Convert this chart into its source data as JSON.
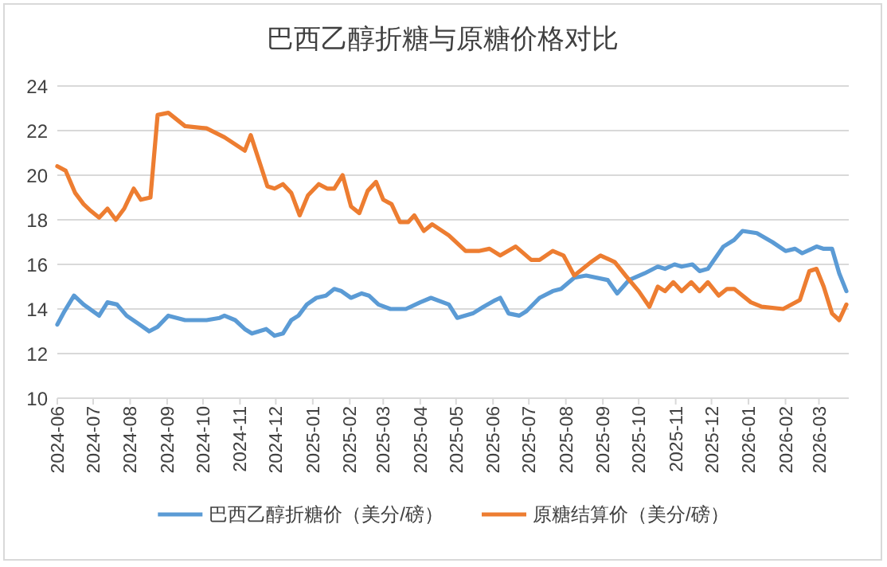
{
  "chart_data": {
    "type": "line",
    "title": "巴西乙醇折糖与原糖价格对比",
    "legend": "bottom",
    "grid": "y",
    "marker": "none",
    "line_style": "solid",
    "xlim": [
      "2024-06-01",
      "2026-03-26"
    ],
    "xticks": [
      "2024-06",
      "2024-07",
      "2024-08",
      "2024-09",
      "2024-10",
      "2024-11",
      "2024-12",
      "2025-01",
      "2025-02",
      "2025-03",
      "2025-04",
      "2025-05",
      "2025-06",
      "2025-07",
      "2025-08",
      "2025-09",
      "2025-10",
      "2025-11",
      "2025-12",
      "2026-01",
      "2026-02",
      "2026-03"
    ],
    "ylim": [
      10,
      24
    ],
    "yticks": [
      10,
      12,
      14,
      16,
      18,
      20,
      22,
      24
    ],
    "series": [
      {
        "name": "巴西乙醇折糖价（美分/磅）",
        "color": "#5b9bd5",
        "x": [
          "2024-06-01",
          "2024-06-07",
          "2024-06-15",
          "2024-06-23",
          "2024-07-06",
          "2024-07-13",
          "2024-07-21",
          "2024-07-29",
          "2024-08-09",
          "2024-08-17",
          "2024-08-24",
          "2024-09-02",
          "2024-09-16",
          "2024-10-04",
          "2024-10-15",
          "2024-10-19",
          "2024-10-28",
          "2024-11-05",
          "2024-11-11",
          "2024-11-23",
          "2024-11-30",
          "2024-12-07",
          "2024-12-14",
          "2024-12-20",
          "2024-12-27",
          "2025-01-04",
          "2025-01-12",
          "2025-01-19",
          "2025-01-25",
          "2025-02-02",
          "2025-02-11",
          "2025-02-17",
          "2025-02-25",
          "2025-03-07",
          "2025-03-20",
          "2025-04-01",
          "2025-04-10",
          "2025-04-25",
          "2025-05-02",
          "2025-05-15",
          "2025-05-24",
          "2025-06-03",
          "2025-06-07",
          "2025-06-14",
          "2025-06-23",
          "2025-06-29",
          "2025-07-10",
          "2025-07-21",
          "2025-07-28",
          "2025-08-08",
          "2025-08-18",
          "2025-09-05",
          "2025-09-13",
          "2025-09-23",
          "2025-10-06",
          "2025-10-17",
          "2025-10-23",
          "2025-10-31",
          "2025-11-06",
          "2025-11-15",
          "2025-11-21",
          "2025-11-28",
          "2025-12-11",
          "2025-12-20",
          "2025-12-27",
          "2026-01-08",
          "2026-01-21",
          "2026-02-01",
          "2026-02-09",
          "2026-02-15",
          "2026-02-27",
          "2026-03-05",
          "2026-03-12",
          "2026-03-18",
          "2026-03-24"
        ],
        "values": [
          13.3,
          13.9,
          14.6,
          14.2,
          13.7,
          14.3,
          14.2,
          13.7,
          13.3,
          13.0,
          13.2,
          13.7,
          13.5,
          13.5,
          13.6,
          13.7,
          13.5,
          13.1,
          12.9,
          13.1,
          12.8,
          12.9,
          13.5,
          13.7,
          14.2,
          14.5,
          14.6,
          14.9,
          14.8,
          14.5,
          14.7,
          14.6,
          14.2,
          14.0,
          14.0,
          14.3,
          14.5,
          14.2,
          13.6,
          13.8,
          14.1,
          14.4,
          14.5,
          13.8,
          13.7,
          13.9,
          14.5,
          14.8,
          14.9,
          15.4,
          15.5,
          15.3,
          14.7,
          15.3,
          15.6,
          15.9,
          15.8,
          16.0,
          15.9,
          16.0,
          15.7,
          15.8,
          16.8,
          17.1,
          17.5,
          17.4,
          17.0,
          16.6,
          16.7,
          16.5,
          16.8,
          16.7,
          16.7,
          15.6,
          14.8
        ]
      },
      {
        "name": "原糖结算价（美分/磅）",
        "color": "#ed7d31",
        "x": [
          "2024-06-01",
          "2024-06-08",
          "2024-06-16",
          "2024-06-23",
          "2024-06-29",
          "2024-07-06",
          "2024-07-13",
          "2024-07-20",
          "2024-07-27",
          "2024-08-04",
          "2024-08-10",
          "2024-08-18",
          "2024-08-24",
          "2024-09-02",
          "2024-09-16",
          "2024-10-04",
          "2024-10-19",
          "2024-11-05",
          "2024-11-10",
          "2024-11-24",
          "2024-11-30",
          "2024-12-07",
          "2024-12-14",
          "2024-12-21",
          "2024-12-28",
          "2025-01-06",
          "2025-01-13",
          "2025-01-19",
          "2025-01-26",
          "2025-02-02",
          "2025-02-09",
          "2025-02-16",
          "2025-02-23",
          "2025-03-01",
          "2025-03-08",
          "2025-03-15",
          "2025-03-22",
          "2025-03-27",
          "2025-04-04",
          "2025-04-11",
          "2025-04-25",
          "2025-05-09",
          "2025-05-20",
          "2025-05-29",
          "2025-06-07",
          "2025-06-20",
          "2025-07-03",
          "2025-07-10",
          "2025-07-21",
          "2025-07-30",
          "2025-08-08",
          "2025-08-22",
          "2025-08-30",
          "2025-09-11",
          "2025-09-20",
          "2025-10-01",
          "2025-10-10",
          "2025-10-17",
          "2025-10-23",
          "2025-10-30",
          "2025-11-06",
          "2025-11-14",
          "2025-11-21",
          "2025-11-28",
          "2025-12-07",
          "2025-12-14",
          "2025-12-20",
          "2026-01-03",
          "2026-01-12",
          "2026-01-30",
          "2026-02-13",
          "2026-02-21",
          "2026-02-27",
          "2026-03-05",
          "2026-03-12",
          "2026-03-18",
          "2026-03-24"
        ],
        "values": [
          20.4,
          20.2,
          19.2,
          18.7,
          18.4,
          18.1,
          18.5,
          18.0,
          18.5,
          19.4,
          18.9,
          19.0,
          22.7,
          22.8,
          22.2,
          22.1,
          21.7,
          21.1,
          21.8,
          19.5,
          19.4,
          19.6,
          19.2,
          18.2,
          19.1,
          19.6,
          19.4,
          19.4,
          20.0,
          18.6,
          18.3,
          19.3,
          19.7,
          18.9,
          18.7,
          17.9,
          17.9,
          18.2,
          17.5,
          17.8,
          17.3,
          16.6,
          16.6,
          16.7,
          16.4,
          16.8,
          16.2,
          16.2,
          16.6,
          16.4,
          15.5,
          16.1,
          16.4,
          16.1,
          15.5,
          14.8,
          14.1,
          15.0,
          14.8,
          15.2,
          14.8,
          15.2,
          14.8,
          15.2,
          14.6,
          14.9,
          14.9,
          14.3,
          14.1,
          14.0,
          14.4,
          15.7,
          15.8,
          15.0,
          13.8,
          13.5,
          14.2
        ]
      }
    ]
  }
}
